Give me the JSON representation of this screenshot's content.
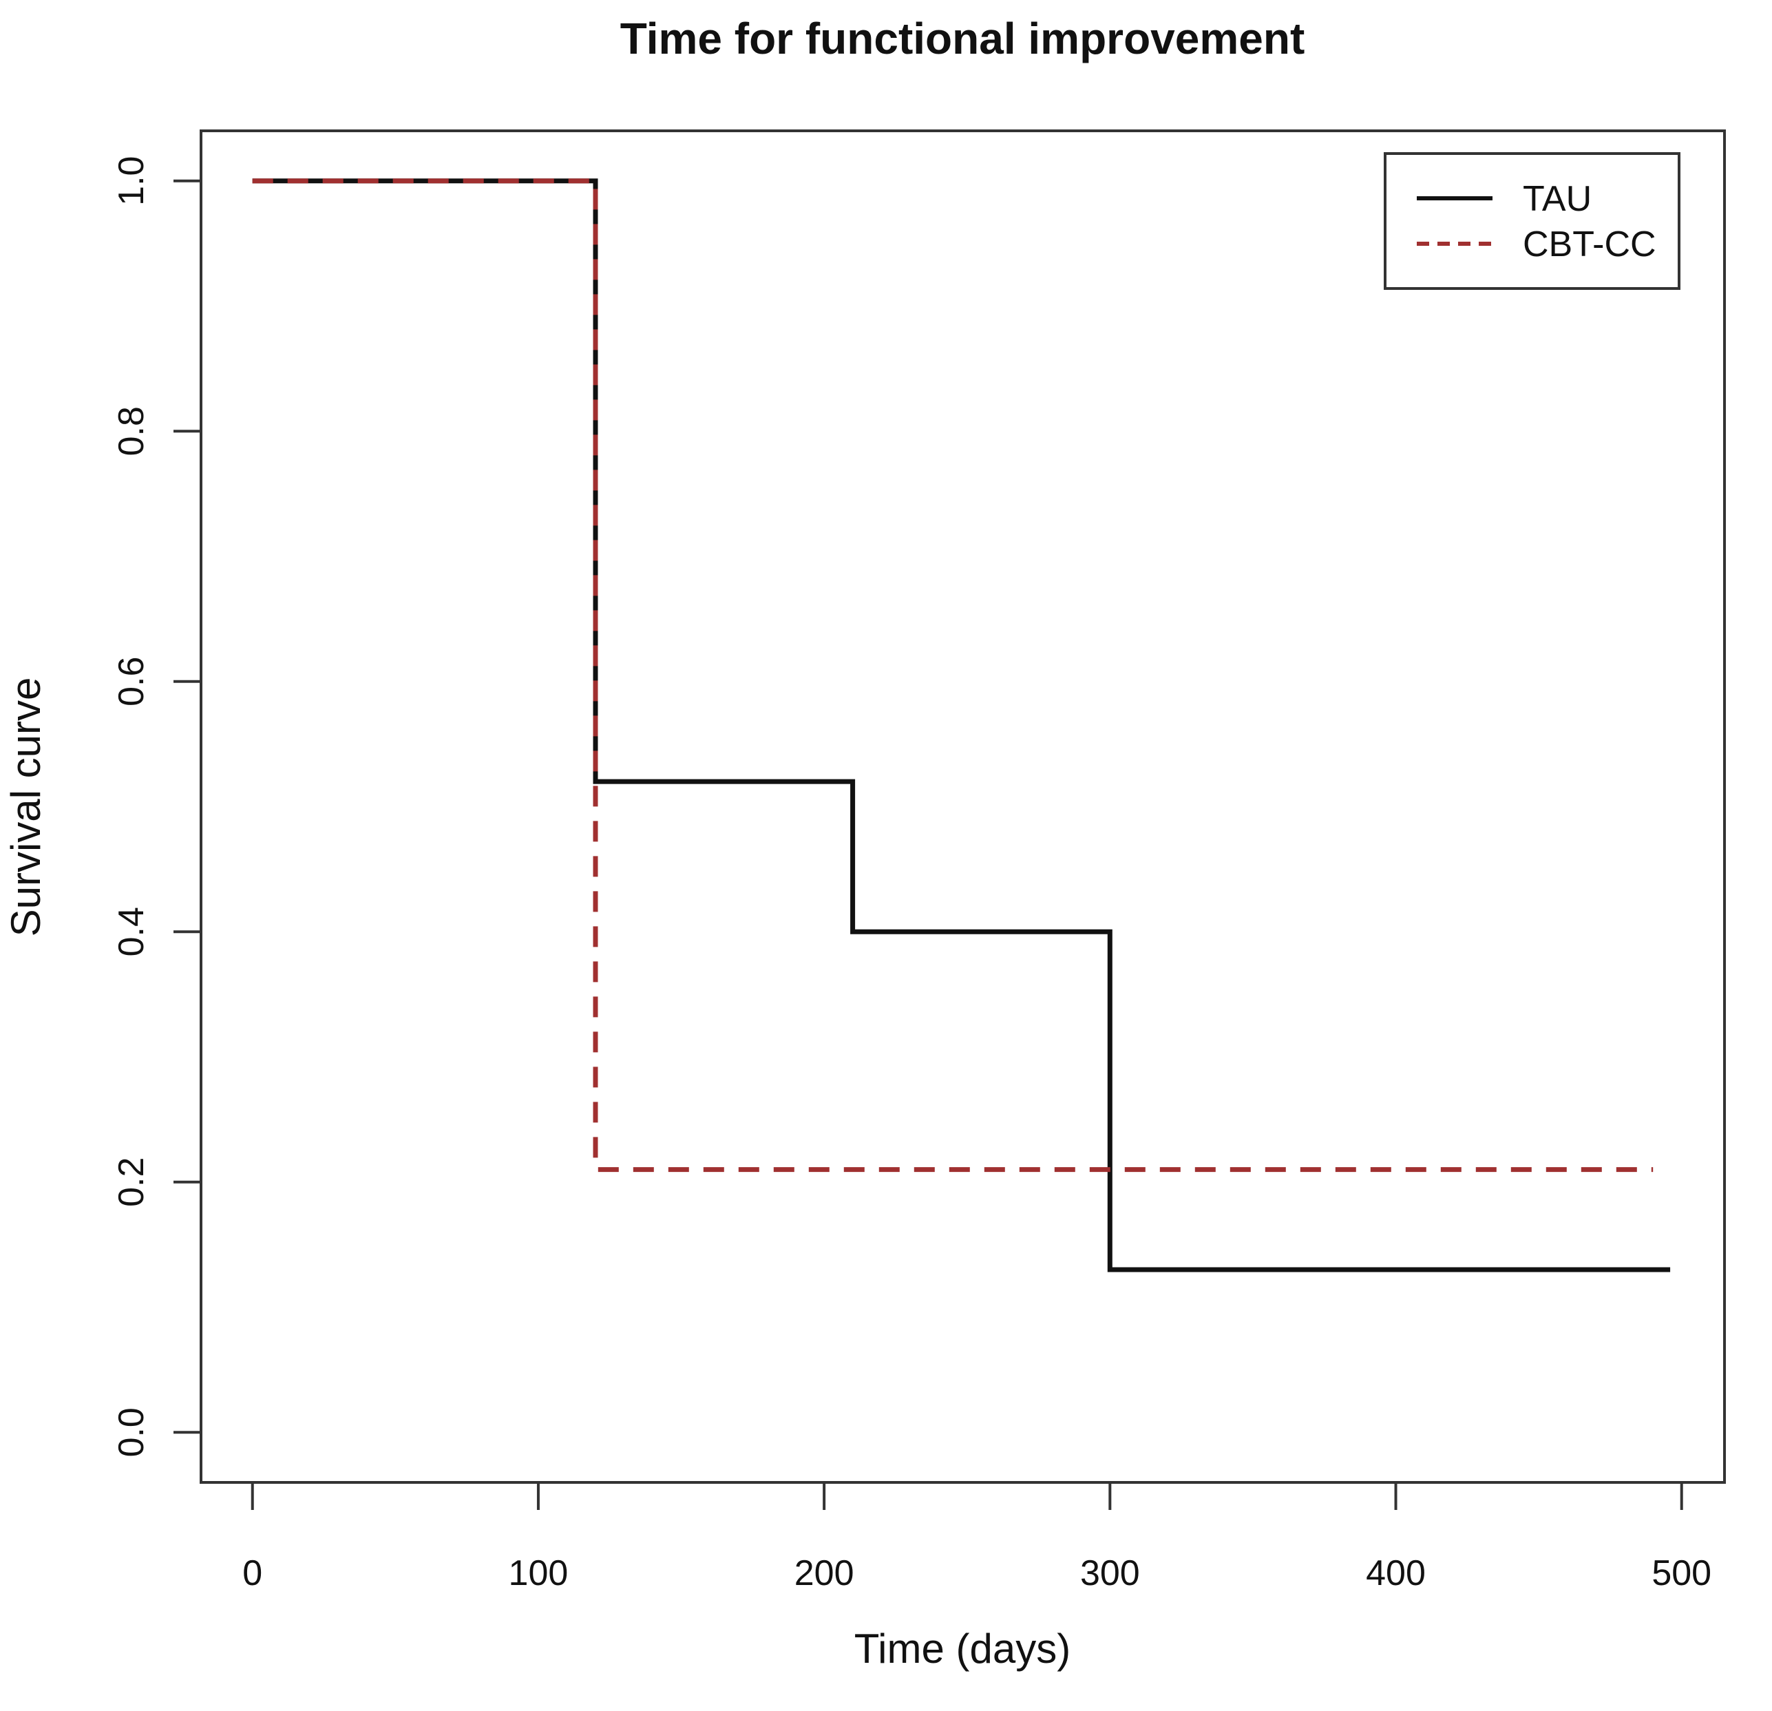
{
  "chart_data": {
    "type": "line",
    "subtype": "kaplan-meier-step",
    "title": "Time for functional improvement",
    "xlabel": "Time (days)",
    "ylabel": "Survival curve",
    "x_ticks": [
      0,
      100,
      200,
      300,
      400,
      500
    ],
    "y_ticks": [
      "0.0",
      "0.2",
      "0.4",
      "0.6",
      "0.8",
      "1.0"
    ],
    "xlim": [
      -18,
      515
    ],
    "ylim": [
      -0.04,
      1.04
    ],
    "grid": false,
    "legend_position": "top-right",
    "colors": {
      "tau_line": "#111111",
      "cbt_line": "#a03030",
      "axis": "#333333",
      "background": "#ffffff"
    },
    "series": [
      {
        "name": "TAU",
        "color": "#111111",
        "style": "solid",
        "steps": [
          [
            0,
            1.0
          ],
          [
            120,
            1.0
          ],
          [
            120,
            0.52
          ],
          [
            210,
            0.52
          ],
          [
            210,
            0.4
          ],
          [
            300,
            0.4
          ],
          [
            300,
            0.13
          ],
          [
            496,
            0.13
          ]
        ]
      },
      {
        "name": "CBT-CC",
        "color": "#a03030",
        "style": "dashed",
        "steps": [
          [
            0,
            1.0
          ],
          [
            120,
            1.0
          ],
          [
            120,
            0.21
          ],
          [
            490,
            0.21
          ]
        ]
      }
    ]
  }
}
